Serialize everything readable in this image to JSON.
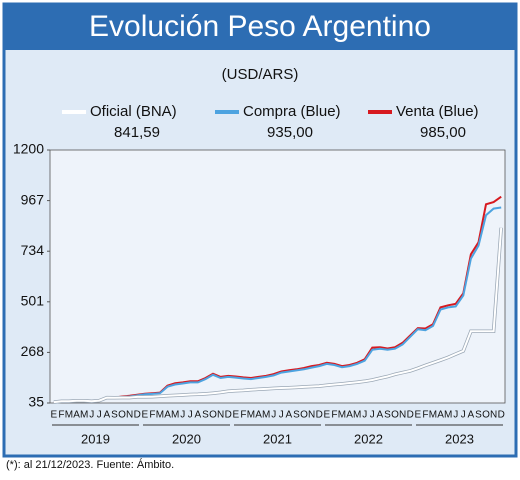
{
  "chart_data": {
    "type": "line",
    "title": "Evolución Peso Argentino",
    "subtitle": "(USD/ARS)",
    "footnote": "(*): al 21/12/2023. Fuente: Ámbito.",
    "categories": [
      "E",
      "F",
      "M",
      "A",
      "M",
      "J",
      "J",
      "A",
      "S",
      "O",
      "N",
      "D",
      "E",
      "F",
      "M",
      "A",
      "M",
      "J",
      "J",
      "A",
      "S",
      "O",
      "N",
      "D",
      "E",
      "F",
      "M",
      "A",
      "M",
      "J",
      "J",
      "A",
      "S",
      "O",
      "N",
      "D",
      "E",
      "F",
      "M",
      "A",
      "M",
      "J",
      "J",
      "A",
      "S",
      "O",
      "N",
      "D",
      "E",
      "F",
      "M",
      "A",
      "M",
      "J",
      "J",
      "A",
      "S",
      "O",
      "N",
      "D"
    ],
    "years": [
      "2019",
      "2020",
      "2021",
      "2022",
      "2023"
    ],
    "series": [
      {
        "name": "Venta (Blue)",
        "last_label": "985,00",
        "color": "#d7191f",
        "values": [
          39,
          41,
          43,
          45,
          46,
          45,
          46,
          60,
          60,
          65,
          68,
          73,
          78,
          80,
          83,
          115,
          126,
          130,
          135,
          135,
          150,
          170,
          155,
          160,
          157,
          153,
          150,
          155,
          160,
          168,
          180,
          186,
          190,
          196,
          205,
          210,
          220,
          215,
          205,
          210,
          220,
          236,
          290,
          292,
          286,
          292,
          312,
          346,
          380,
          378,
          398,
          475,
          485,
          492,
          540,
          720,
          775,
          950,
          960,
          985
        ]
      },
      {
        "name": "Compra (Blue)",
        "last_label": "935,00",
        "color": "#4da3e0",
        "values": [
          38,
          40,
          42,
          44,
          45,
          44,
          45,
          58,
          58,
          62,
          65,
          70,
          75,
          77,
          80,
          110,
          120,
          125,
          130,
          130,
          145,
          165,
          150,
          155,
          152,
          148,
          145,
          150,
          155,
          162,
          175,
          180,
          185,
          190,
          198,
          205,
          215,
          210,
          200,
          205,
          215,
          230,
          280,
          285,
          280,
          285,
          305,
          340,
          375,
          370,
          390,
          465,
          475,
          480,
          530,
          700,
          760,
          900,
          930,
          935
        ]
      },
      {
        "name": "Oficial (BNA)",
        "last_label": "841,59",
        "color": "#ffffff",
        "values": [
          39,
          43,
          43,
          45,
          45,
          43,
          46,
          60,
          59,
          60,
          60,
          63,
          63,
          64,
          66,
          68,
          70,
          72,
          74,
          75,
          77,
          80,
          84,
          89,
          91,
          93,
          96,
          98,
          100,
          102,
          104,
          105,
          107,
          109,
          111,
          113,
          117,
          120,
          123,
          127,
          131,
          135,
          141,
          149,
          157,
          167,
          175,
          183,
          195,
          208,
          220,
          232,
          245,
          260,
          275,
          365,
          365,
          365,
          365,
          841.59
        ]
      }
    ],
    "ylim": [
      35,
      1200
    ],
    "yticks": [
      35,
      268,
      501,
      734,
      967,
      1200
    ],
    "grid": false
  }
}
